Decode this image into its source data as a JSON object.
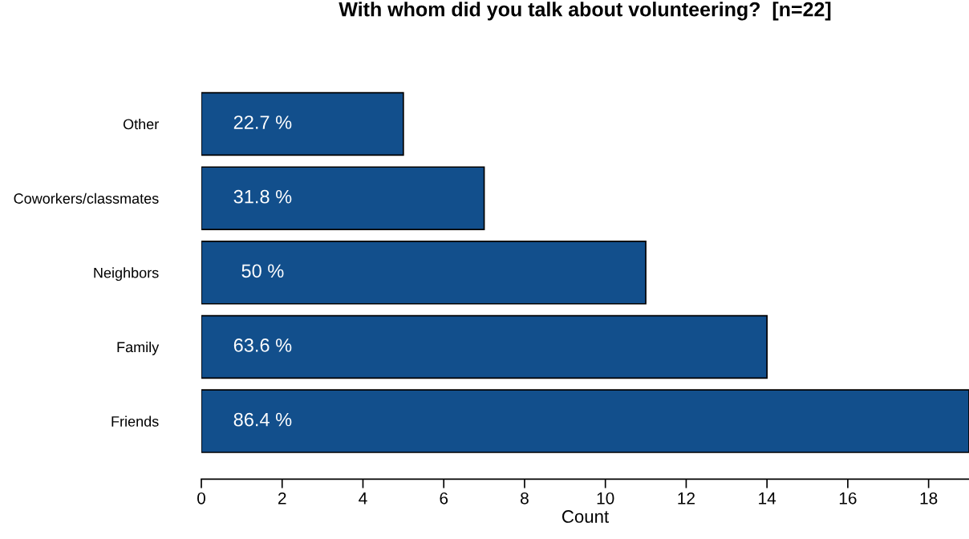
{
  "chart_data": {
    "type": "bar",
    "orientation": "horizontal",
    "title": "With whom did you talk about volunteering?  [n=22]",
    "xlabel": "Count",
    "categories": [
      "Other",
      "Coworkers/classmates",
      "Neighbors",
      "Family",
      "Friends"
    ],
    "values": [
      5,
      7,
      11,
      14,
      19
    ],
    "annotations": [
      {
        "text": "22.7 %",
        "y": "Other"
      },
      {
        "text": "31.8 %",
        "y": "Coworkers/classmates"
      },
      {
        "text": "50 %",
        "y": "Neighbors"
      },
      {
        "text": "63.6 %",
        "y": "Family"
      },
      {
        "text": "86.4 %",
        "y": "Friends"
      }
    ],
    "color": "#124f8c",
    "xlim": [
      0,
      19
    ],
    "xticks": [
      0,
      2,
      4,
      6,
      8,
      10,
      12,
      14,
      16,
      18
    ],
    "grid": false
  }
}
